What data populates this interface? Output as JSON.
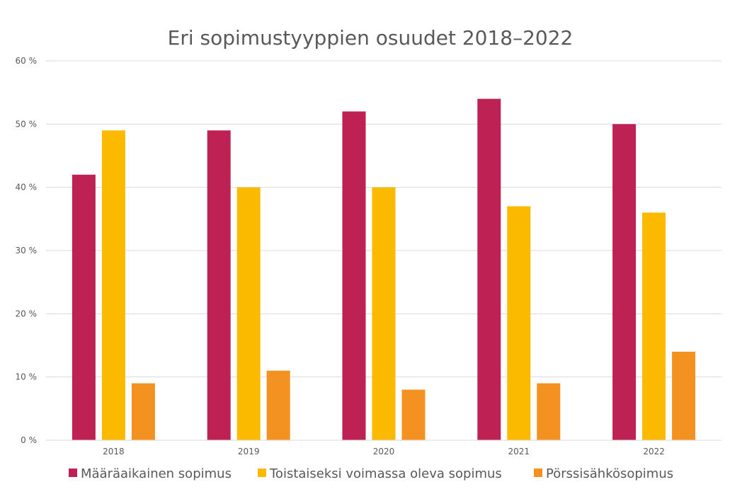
{
  "chart_data": {
    "type": "bar",
    "title": "Eri sopimustyyppien osuudet 2018–2022",
    "xlabel": "",
    "ylabel": "",
    "categories": [
      "2018",
      "2019",
      "2020",
      "2021",
      "2022"
    ],
    "ylim": [
      0,
      60
    ],
    "yticks": [
      0,
      10,
      20,
      30,
      40,
      50,
      60
    ],
    "ytick_labels": [
      "0 %",
      "10 %",
      "20 %",
      "30 %",
      "40 %",
      "50 %",
      "60 %"
    ],
    "grid": true,
    "legend_position": "bottom",
    "series": [
      {
        "name": "Määräaikainen sopimus",
        "color": "#BE2255",
        "values": [
          42,
          49,
          52,
          54,
          50
        ]
      },
      {
        "name": "Toistaiseksi voimassa oleva sopimus",
        "color": "#FBBA00",
        "values": [
          49,
          40,
          40,
          37,
          36
        ]
      },
      {
        "name": "Pörssisähkösopimus",
        "color": "#F39220",
        "values": [
          9,
          11,
          8,
          9,
          14
        ]
      }
    ]
  }
}
